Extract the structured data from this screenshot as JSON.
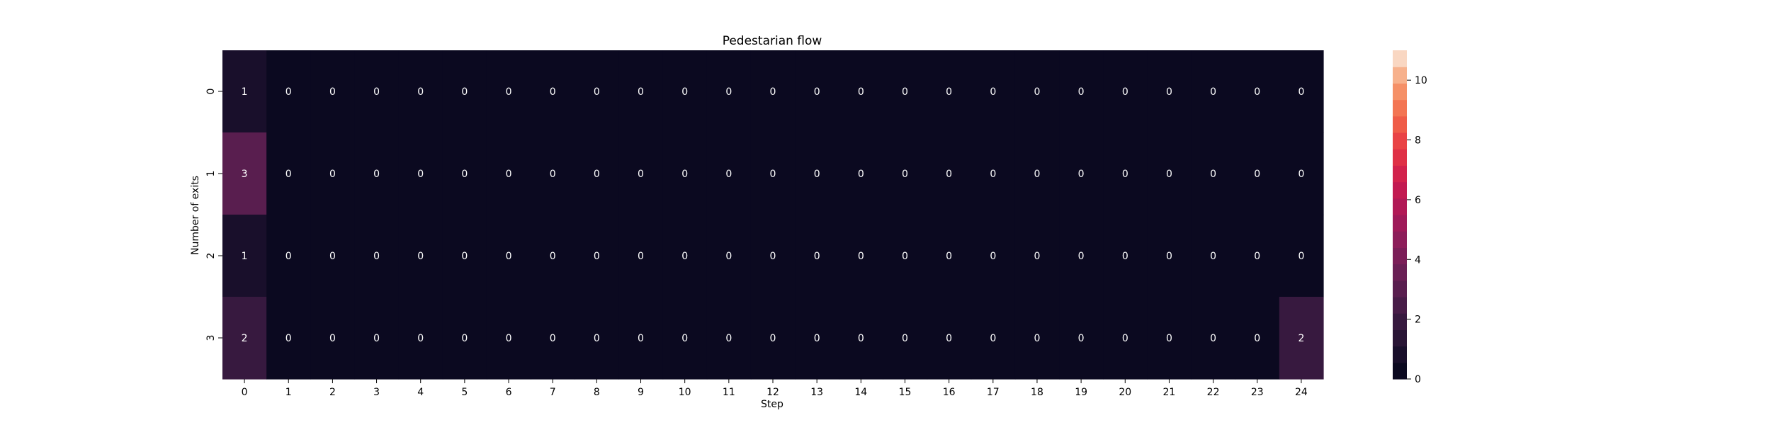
{
  "chart_data": {
    "type": "heatmap",
    "title": "Pedestarian flow",
    "xlabel": "Step",
    "ylabel": "Number of exits",
    "x_categories": [
      "0",
      "1",
      "2",
      "3",
      "4",
      "5",
      "6",
      "7",
      "8",
      "9",
      "10",
      "11",
      "12",
      "13",
      "14",
      "15",
      "16",
      "17",
      "18",
      "19",
      "20",
      "21",
      "22",
      "23",
      "24"
    ],
    "y_categories": [
      "0",
      "1",
      "2",
      "3"
    ],
    "values": [
      [
        1,
        0,
        0,
        0,
        0,
        0,
        0,
        0,
        0,
        0,
        0,
        0,
        0,
        0,
        0,
        0,
        0,
        0,
        0,
        0,
        0,
        0,
        0,
        0,
        0
      ],
      [
        3,
        0,
        0,
        0,
        0,
        0,
        0,
        0,
        0,
        0,
        0,
        0,
        0,
        0,
        0,
        0,
        0,
        0,
        0,
        0,
        0,
        0,
        0,
        0,
        0
      ],
      [
        1,
        0,
        0,
        0,
        0,
        0,
        0,
        0,
        0,
        0,
        0,
        0,
        0,
        0,
        0,
        0,
        0,
        0,
        0,
        0,
        0,
        0,
        0,
        0,
        0
      ],
      [
        2,
        0,
        0,
        0,
        0,
        0,
        0,
        0,
        0,
        0,
        0,
        0,
        0,
        0,
        0,
        0,
        0,
        0,
        0,
        0,
        0,
        0,
        0,
        0,
        2
      ]
    ],
    "colorbar": {
      "range": [
        0,
        11
      ],
      "ticks": [
        0,
        2,
        4,
        6,
        8,
        10
      ],
      "colormap": "rocket",
      "levels": 20,
      "location": "right"
    },
    "annotations": true,
    "grid": false
  }
}
